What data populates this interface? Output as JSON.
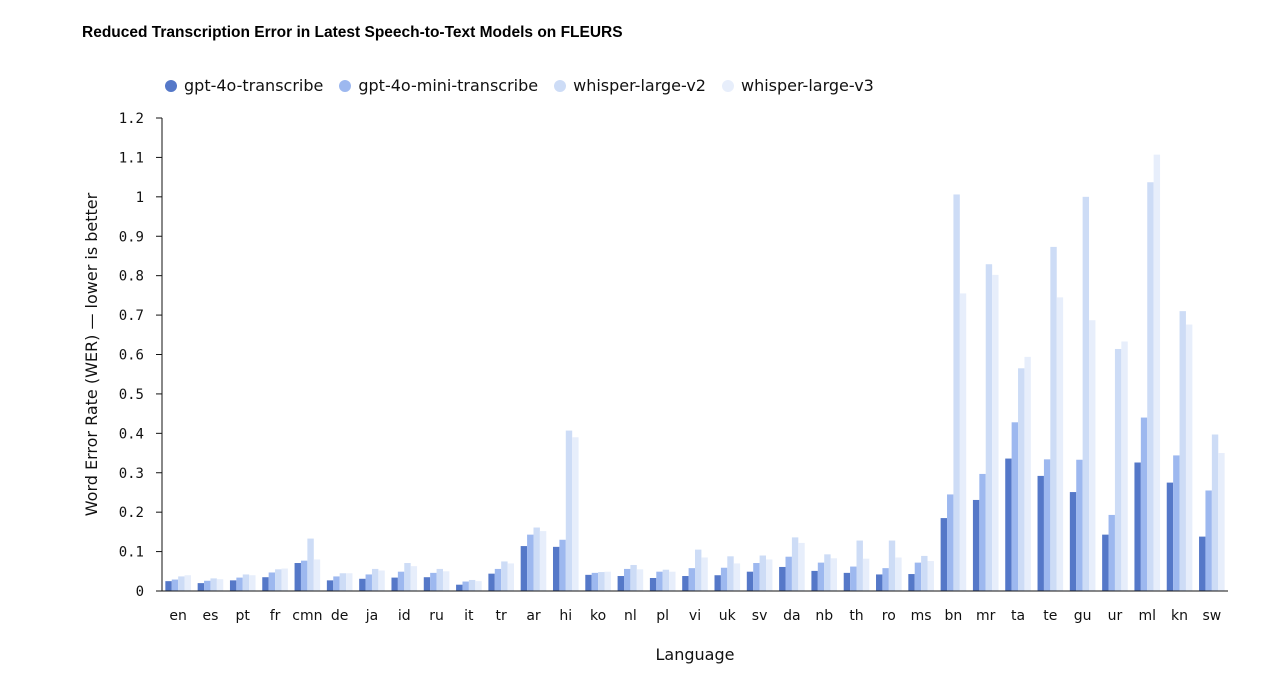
{
  "chart_data": {
    "type": "bar",
    "title": "Reduced Transcription Error in Latest Speech-to-Text Models on FLEURS",
    "xlabel": "Language",
    "ylabel": "Word Error Rate (WER) — lower is better",
    "ylim": [
      0,
      1.2
    ],
    "yticks": [
      "0",
      "0.1",
      "0.2",
      "0.3",
      "0.4",
      "0.5",
      "0.6",
      "0.7",
      "0.8",
      "0.9",
      "1",
      "1.1",
      "1.2"
    ],
    "legend_position": "top-left",
    "categories": [
      "en",
      "es",
      "pt",
      "fr",
      "cmn",
      "de",
      "ja",
      "id",
      "ru",
      "it",
      "tr",
      "ar",
      "hi",
      "ko",
      "nl",
      "pl",
      "vi",
      "uk",
      "sv",
      "da",
      "nb",
      "th",
      "ro",
      "ms",
      "bn",
      "mr",
      "ta",
      "te",
      "gu",
      "ur",
      "ml",
      "kn",
      "sw"
    ],
    "series": [
      {
        "name": "gpt-4o-transcribe",
        "color": "#5578c8",
        "values": [
          0.025,
          0.02,
          0.027,
          0.035,
          0.071,
          0.027,
          0.031,
          0.034,
          0.035,
          0.016,
          0.044,
          0.114,
          0.112,
          0.041,
          0.038,
          0.033,
          0.038,
          0.04,
          0.049,
          0.061,
          0.051,
          0.046,
          0.042,
          0.043,
          0.185,
          0.231,
          0.336,
          0.292,
          0.251,
          0.143,
          0.326,
          0.275,
          0.138
        ]
      },
      {
        "name": "gpt-4o-mini-transcribe",
        "color": "#9db8ef",
        "values": [
          0.029,
          0.026,
          0.034,
          0.047,
          0.077,
          0.037,
          0.042,
          0.049,
          0.046,
          0.024,
          0.056,
          0.143,
          0.13,
          0.046,
          0.056,
          0.049,
          0.058,
          0.059,
          0.071,
          0.087,
          0.072,
          0.062,
          0.058,
          0.072,
          0.245,
          0.297,
          0.428,
          0.334,
          0.333,
          0.193,
          0.44,
          0.344,
          0.255
        ]
      },
      {
        "name": "whisper-large-v2",
        "color": "#cddcf6",
        "values": [
          0.037,
          0.032,
          0.042,
          0.055,
          0.133,
          0.045,
          0.056,
          0.071,
          0.056,
          0.028,
          0.075,
          0.161,
          0.407,
          0.048,
          0.066,
          0.054,
          0.105,
          0.088,
          0.09,
          0.136,
          0.093,
          0.128,
          0.128,
          0.089,
          1.006,
          0.829,
          0.565,
          0.873,
          1.0,
          0.614,
          1.037,
          0.71,
          0.397
        ]
      },
      {
        "name": "whisper-large-v3",
        "color": "#e7eefb",
        "values": [
          0.04,
          0.03,
          0.04,
          0.057,
          0.08,
          0.045,
          0.052,
          0.063,
          0.05,
          0.025,
          0.07,
          0.152,
          0.39,
          0.049,
          0.055,
          0.049,
          0.085,
          0.07,
          0.08,
          0.122,
          0.083,
          0.082,
          0.085,
          0.076,
          0.755,
          0.802,
          0.594,
          0.745,
          0.687,
          0.633,
          1.107,
          0.676,
          0.35
        ]
      }
    ]
  }
}
